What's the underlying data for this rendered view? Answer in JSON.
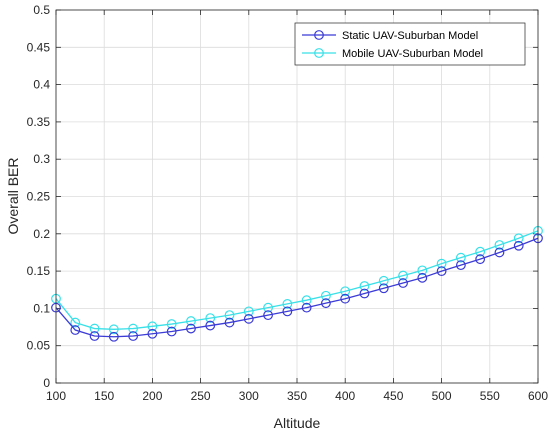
{
  "chart_data": {
    "type": "line",
    "title": "",
    "xlabel": "Altitude",
    "ylabel": "Overall BER",
    "xlim": [
      100,
      600
    ],
    "ylim": [
      0,
      0.5
    ],
    "xticks": [
      "100",
      "150",
      "200",
      "250",
      "300",
      "350",
      "400",
      "450",
      "500",
      "550",
      "600"
    ],
    "yticks": [
      "0",
      "0.05",
      "0.1",
      "0.15",
      "0.2",
      "0.25",
      "0.3",
      "0.35",
      "0.4",
      "0.45",
      "0.5"
    ],
    "grid": true,
    "legend_position": "top-right",
    "x": [
      100,
      120,
      140,
      160,
      180,
      200,
      220,
      240,
      260,
      280,
      300,
      320,
      340,
      360,
      380,
      400,
      420,
      440,
      460,
      480,
      500,
      520,
      540,
      560,
      580,
      600
    ],
    "series": [
      {
        "name": "Static UAV-Suburban Model",
        "color": "#3b3bd6",
        "marker": "circle",
        "values": [
          0.101,
          0.071,
          0.063,
          0.062,
          0.063,
          0.066,
          0.069,
          0.073,
          0.077,
          0.081,
          0.086,
          0.091,
          0.096,
          0.101,
          0.107,
          0.113,
          0.12,
          0.127,
          0.134,
          0.141,
          0.15,
          0.158,
          0.166,
          0.175,
          0.184,
          0.194
        ]
      },
      {
        "name": "Mobile UAV-Suburban Model",
        "color": "#38e0e8",
        "marker": "circle",
        "values": [
          0.113,
          0.081,
          0.073,
          0.072,
          0.073,
          0.076,
          0.079,
          0.083,
          0.087,
          0.091,
          0.096,
          0.101,
          0.106,
          0.111,
          0.117,
          0.123,
          0.13,
          0.137,
          0.144,
          0.151,
          0.16,
          0.168,
          0.176,
          0.185,
          0.194,
          0.204
        ]
      }
    ]
  }
}
